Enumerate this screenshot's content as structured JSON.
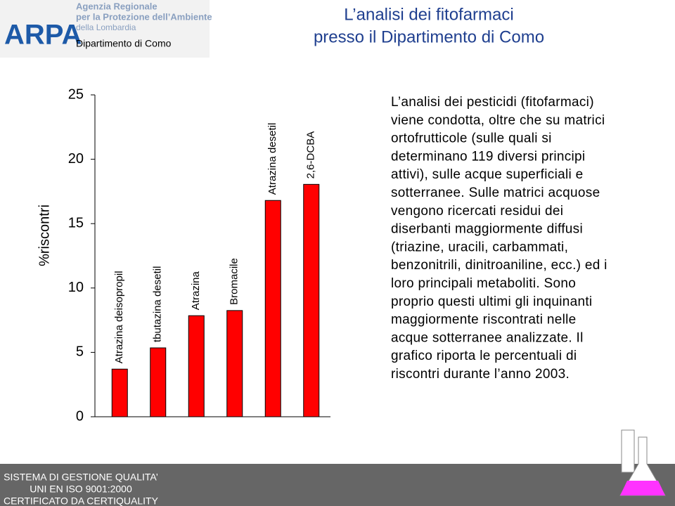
{
  "header": {
    "logo": "ARPA",
    "agency": [
      "Agenzia Regionale",
      "per la Protezione dell’Ambiente",
      "della Lombardia"
    ],
    "department": "Dipartimento di Como",
    "title": [
      "L’analisi dei fitofarmaci",
      "presso il Dipartimento di Como"
    ]
  },
  "chart_data": {
    "type": "bar",
    "y_label": "%riscontri",
    "categories": [
      "Atrazina deisopropil",
      "tbutazina desetil",
      "Atrazina",
      "Bromacile",
      "Atrazina desetil",
      "2,6-DCBA"
    ],
    "values": [
      3.7,
      5.35,
      7.85,
      8.25,
      16.8,
      18.05
    ],
    "color": "#ff0000",
    "ylim": [
      0,
      25
    ],
    "yticks": [
      0,
      5,
      10,
      15,
      20,
      25
    ]
  },
  "body": [
    "L’analisi dei pesticidi (fitofarmaci)",
    "viene condotta, oltre che su matrici",
    "ortofrutticole (sulle quali si",
    "determinano 119 diversi principi",
    "attivi), sulle acque superficiali e",
    "sotterranee. Sulle matrici acquose",
    "vengono ricercati residui dei",
    "diserbanti maggiormente diffusi",
    "(triazine, uracili, carbammati,",
    "benzonitrili, dinitroaniline, ecc.) ed i",
    "loro principali metaboliti. Sono",
    "proprio questi ultimi gli inquinanti",
    "maggiormente riscontrati nelle",
    "acque sotterranee analizzate. Il",
    "grafico riporta le percentuali di",
    "riscontri durante l’anno 2003."
  ],
  "footer": [
    "SISTEMA DI GESTIONE QUALITA’",
    "UNI EN ISO 9001:2000",
    "CERTIFICATO DA CERTIQUALITY"
  ]
}
